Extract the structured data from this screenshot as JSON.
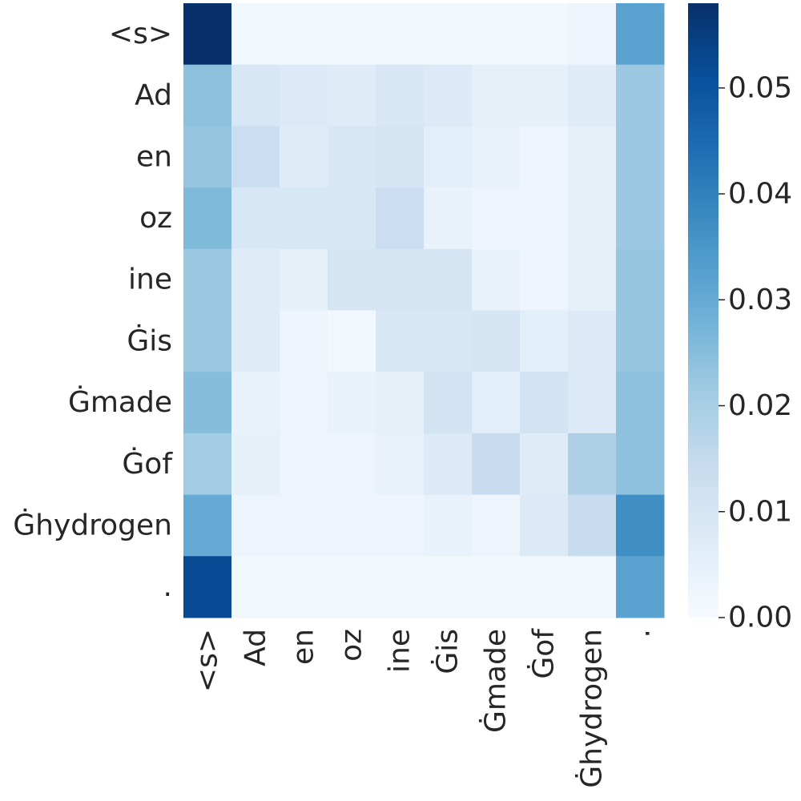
{
  "chart_data": {
    "type": "heatmap",
    "title": "",
    "xlabel": "",
    "ylabel": "",
    "x_labels": [
      "<s>",
      "Ad",
      "en",
      "oz",
      "ine",
      "Ġis",
      "Ġmade",
      "Ġof",
      "Ġhydrogen",
      "."
    ],
    "y_labels": [
      "<s>",
      "Ad",
      "en",
      "oz",
      "ine",
      "Ġis",
      "Ġmade",
      "Ġof",
      "Ġhydrogen",
      "."
    ],
    "values": [
      [
        0.058,
        0.002,
        0.002,
        0.002,
        0.002,
        0.002,
        0.002,
        0.002,
        0.003,
        0.032
      ],
      [
        0.024,
        0.009,
        0.008,
        0.007,
        0.009,
        0.008,
        0.005,
        0.005,
        0.007,
        0.022
      ],
      [
        0.023,
        0.013,
        0.007,
        0.009,
        0.01,
        0.006,
        0.004,
        0.003,
        0.005,
        0.022
      ],
      [
        0.026,
        0.009,
        0.009,
        0.009,
        0.013,
        0.004,
        0.003,
        0.003,
        0.005,
        0.022
      ],
      [
        0.022,
        0.007,
        0.005,
        0.01,
        0.01,
        0.01,
        0.004,
        0.003,
        0.005,
        0.023
      ],
      [
        0.022,
        0.007,
        0.003,
        0.002,
        0.009,
        0.009,
        0.01,
        0.006,
        0.008,
        0.023
      ],
      [
        0.025,
        0.004,
        0.003,
        0.004,
        0.005,
        0.011,
        0.006,
        0.011,
        0.008,
        0.024
      ],
      [
        0.021,
        0.005,
        0.003,
        0.003,
        0.004,
        0.008,
        0.014,
        0.007,
        0.019,
        0.024
      ],
      [
        0.03,
        0.003,
        0.003,
        0.003,
        0.003,
        0.004,
        0.003,
        0.008,
        0.014,
        0.037
      ],
      [
        0.052,
        0.002,
        0.002,
        0.002,
        0.002,
        0.002,
        0.002,
        0.002,
        0.002,
        0.032
      ]
    ],
    "colormap": "Blues",
    "vmin": 0,
    "vmax": 0.058,
    "colorbar_ticks": [
      0.0,
      0.01,
      0.02,
      0.03,
      0.04,
      0.05
    ],
    "colorbar_tick_labels": [
      "0.00",
      "0.01",
      "0.02",
      "0.03",
      "0.04",
      "0.05"
    ],
    "grid": false
  }
}
